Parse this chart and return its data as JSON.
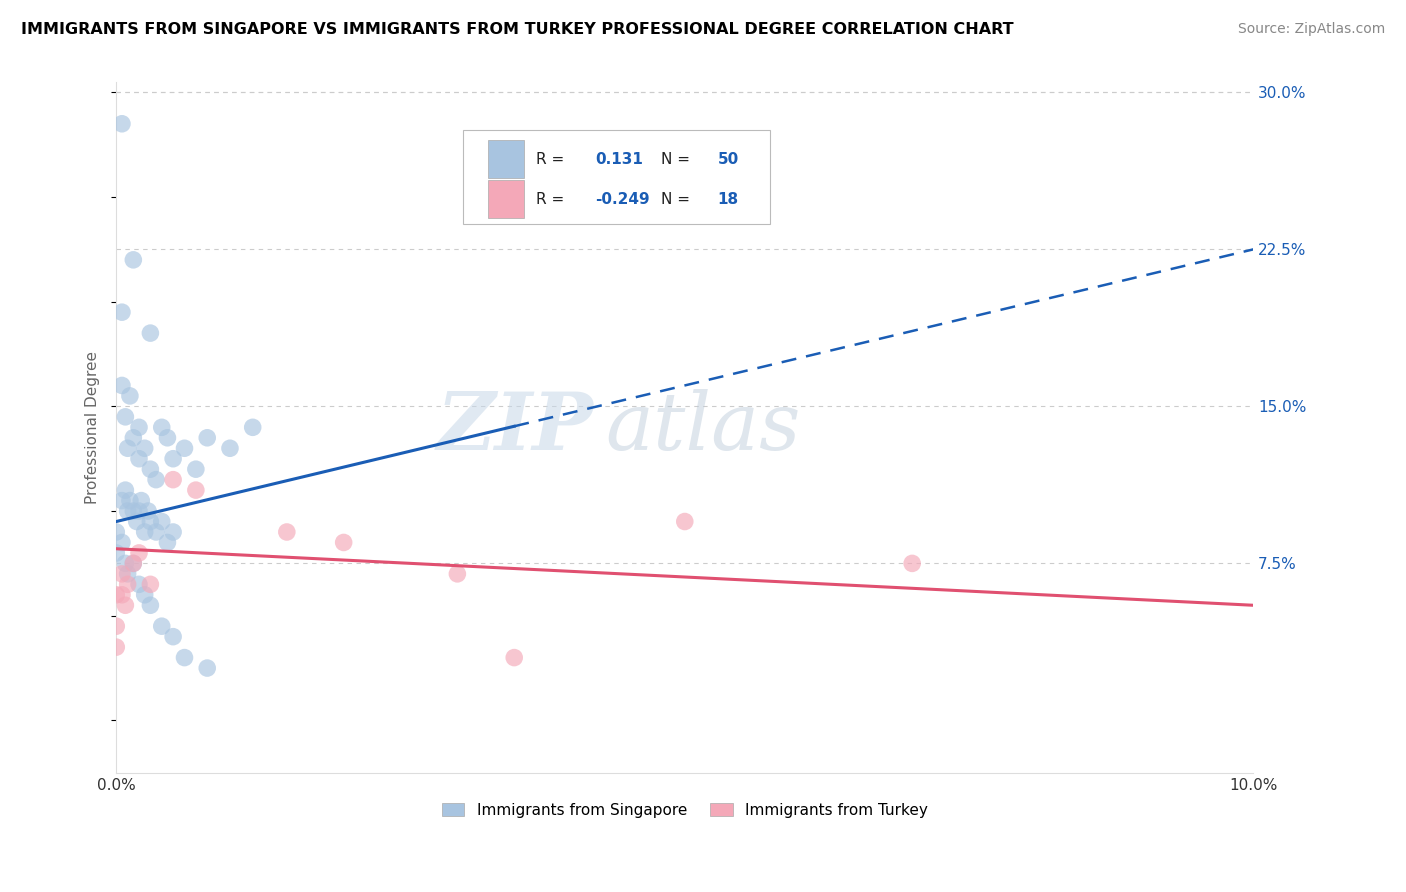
{
  "title": "IMMIGRANTS FROM SINGAPORE VS IMMIGRANTS FROM TURKEY PROFESSIONAL DEGREE CORRELATION CHART",
  "source": "Source: ZipAtlas.com",
  "ylabel": "Professional Degree",
  "xlim": [
    0.0,
    10.0
  ],
  "ylim": [
    0.0,
    30.0
  ],
  "ytick_labels_right": [
    "7.5%",
    "15.0%",
    "22.5%",
    "30.0%"
  ],
  "ytick_vals_right": [
    7.5,
    15.0,
    22.5,
    30.0
  ],
  "singapore_color": "#a8c4e0",
  "turkey_color": "#f4a8b8",
  "singapore_line_color": "#1a5db5",
  "turkey_line_color": "#e05070",
  "singapore_R": 0.131,
  "singapore_N": 50,
  "turkey_R": -0.249,
  "turkey_N": 18,
  "watermark_zip": "ZIP",
  "watermark_atlas": "atlas",
  "legend_label_singapore": "Immigrants from Singapore",
  "legend_label_turkey": "Immigrants from Turkey",
  "sg_line_x0": 0.0,
  "sg_line_y0": 9.5,
  "sg_line_x1": 10.0,
  "sg_line_y1": 22.5,
  "tr_line_x0": 0.0,
  "tr_line_y0": 8.2,
  "tr_line_x1": 10.0,
  "tr_line_y1": 5.5,
  "sg_dashed_x0": 3.5,
  "sg_dashed_x1": 10.0,
  "singapore_points": [
    [
      0.05,
      28.5
    ],
    [
      0.15,
      22.0
    ],
    [
      0.05,
      19.5
    ],
    [
      0.3,
      18.5
    ],
    [
      0.05,
      16.0
    ],
    [
      0.08,
      14.5
    ],
    [
      0.12,
      15.5
    ],
    [
      0.1,
      13.0
    ],
    [
      0.15,
      13.5
    ],
    [
      0.2,
      14.0
    ],
    [
      0.2,
      12.5
    ],
    [
      0.25,
      13.0
    ],
    [
      0.3,
      12.0
    ],
    [
      0.35,
      11.5
    ],
    [
      0.4,
      14.0
    ],
    [
      0.45,
      13.5
    ],
    [
      0.5,
      12.5
    ],
    [
      0.6,
      13.0
    ],
    [
      0.7,
      12.0
    ],
    [
      0.8,
      13.5
    ],
    [
      1.0,
      13.0
    ],
    [
      1.2,
      14.0
    ],
    [
      0.05,
      10.5
    ],
    [
      0.08,
      11.0
    ],
    [
      0.1,
      10.0
    ],
    [
      0.12,
      10.5
    ],
    [
      0.15,
      10.0
    ],
    [
      0.18,
      9.5
    ],
    [
      0.2,
      10.0
    ],
    [
      0.22,
      10.5
    ],
    [
      0.25,
      9.0
    ],
    [
      0.28,
      10.0
    ],
    [
      0.3,
      9.5
    ],
    [
      0.35,
      9.0
    ],
    [
      0.4,
      9.5
    ],
    [
      0.45,
      8.5
    ],
    [
      0.5,
      9.0
    ],
    [
      0.0,
      9.0
    ],
    [
      0.0,
      8.0
    ],
    [
      0.05,
      8.5
    ],
    [
      0.08,
      7.5
    ],
    [
      0.1,
      7.0
    ],
    [
      0.15,
      7.5
    ],
    [
      0.2,
      6.5
    ],
    [
      0.25,
      6.0
    ],
    [
      0.3,
      5.5
    ],
    [
      0.4,
      4.5
    ],
    [
      0.5,
      4.0
    ],
    [
      0.6,
      3.0
    ],
    [
      0.8,
      2.5
    ]
  ],
  "turkey_points": [
    [
      0.0,
      6.0
    ],
    [
      0.0,
      4.5
    ],
    [
      0.0,
      3.5
    ],
    [
      0.05,
      7.0
    ],
    [
      0.05,
      6.0
    ],
    [
      0.08,
      5.5
    ],
    [
      0.1,
      6.5
    ],
    [
      0.15,
      7.5
    ],
    [
      0.2,
      8.0
    ],
    [
      0.3,
      6.5
    ],
    [
      0.5,
      11.5
    ],
    [
      0.7,
      11.0
    ],
    [
      1.5,
      9.0
    ],
    [
      2.0,
      8.5
    ],
    [
      3.0,
      7.0
    ],
    [
      5.0,
      9.5
    ],
    [
      7.0,
      7.5
    ],
    [
      3.5,
      3.0
    ]
  ]
}
